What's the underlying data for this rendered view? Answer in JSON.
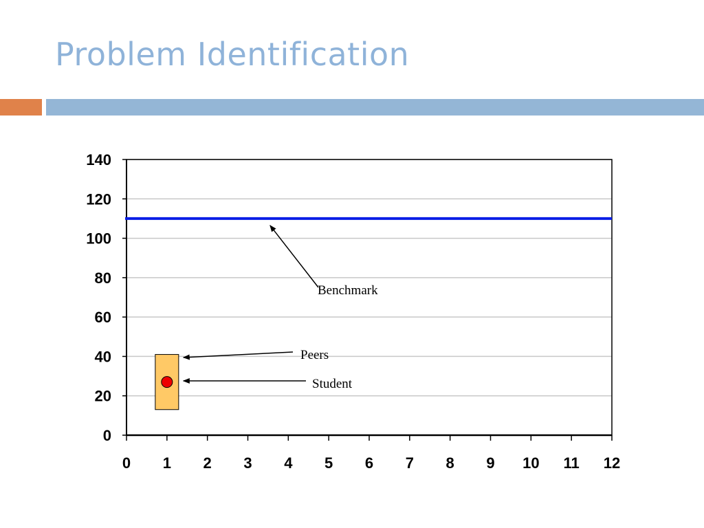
{
  "slide": {
    "title": "Problem Identification",
    "accent_orange": "#e0824a",
    "accent_blue": "#94b6d6"
  },
  "chart_data": {
    "type": "scatter",
    "title": "",
    "xlabel": "",
    "ylabel": "",
    "xlim": [
      0,
      12
    ],
    "ylim": [
      0,
      140
    ],
    "x_ticks": [
      0,
      1,
      2,
      3,
      4,
      5,
      6,
      7,
      8,
      9,
      10,
      11,
      12
    ],
    "y_ticks": [
      0,
      20,
      40,
      60,
      80,
      100,
      120,
      140
    ],
    "grid": true,
    "benchmark": {
      "label": "Benchmark",
      "y": 110,
      "color": "#0a1ee6"
    },
    "peers": {
      "label": "Peers",
      "x": 1,
      "low": 13,
      "high": 41,
      "color": "#ffc966"
    },
    "student": {
      "label": "Student",
      "x": 1,
      "y": 27,
      "color": "#ee0000"
    }
  }
}
